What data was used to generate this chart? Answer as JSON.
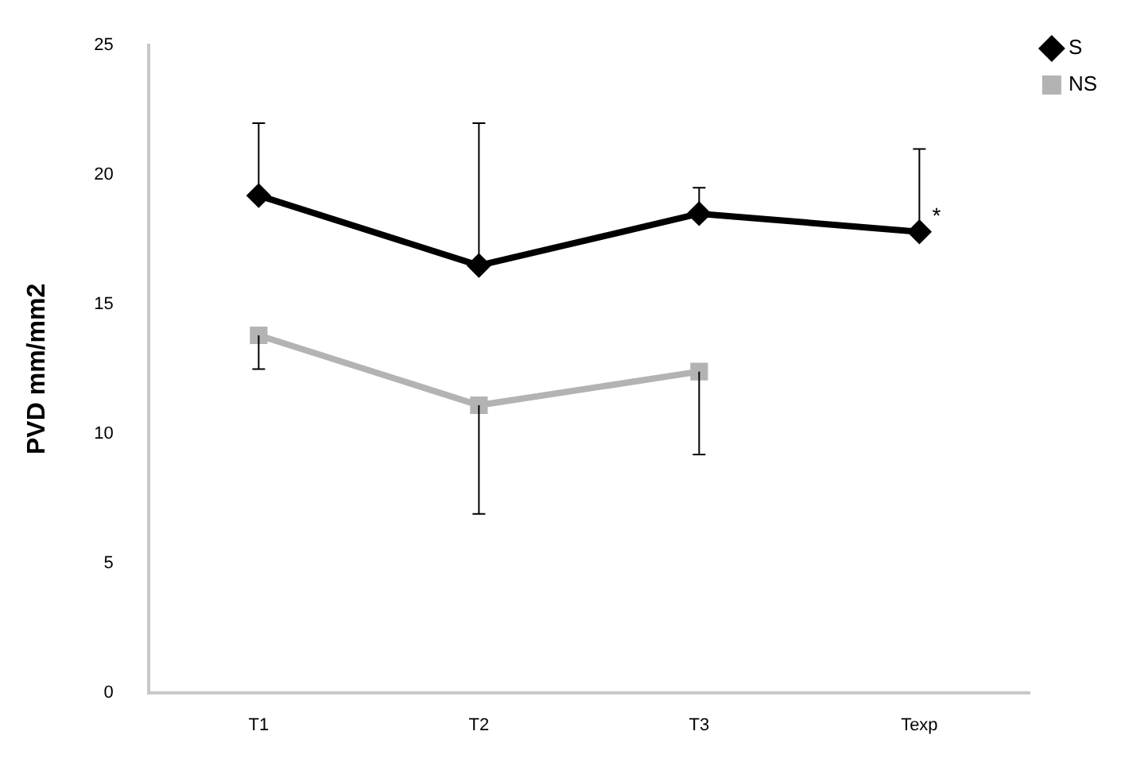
{
  "chart_data": {
    "type": "line",
    "ylabel": "PVD mm/mm2",
    "categories": [
      "T1",
      "T2",
      "T3",
      "Texp"
    ],
    "series": [
      {
        "name": "S",
        "color": "#000000",
        "marker": "diamond",
        "values": [
          19.2,
          16.5,
          18.5,
          17.8
        ],
        "errors": [
          [
            19.2,
            22.0
          ],
          [
            16.5,
            22.0
          ],
          [
            18.5,
            19.5
          ],
          [
            17.8,
            21.0
          ]
        ]
      },
      {
        "name": "NS",
        "color": "#b3b3b3",
        "marker": "square",
        "values": [
          13.8,
          11.1,
          12.4,
          null
        ],
        "errors": [
          [
            12.5,
            13.8
          ],
          [
            6.9,
            11.1
          ],
          [
            9.2,
            12.4
          ],
          null
        ]
      }
    ],
    "ylim": [
      0,
      25
    ],
    "yticks": [
      0,
      5,
      10,
      15,
      20,
      25
    ],
    "grid": false,
    "legend": "top right",
    "annotations": [
      {
        "text": "*",
        "x": "Texp",
        "y": 17.8
      }
    ]
  }
}
